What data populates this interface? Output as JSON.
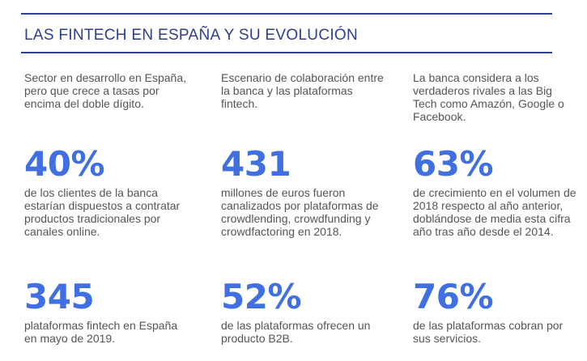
{
  "title": "LAS FINTECH EN ESPAÑA Y SU EVOLUCIÓN",
  "columns": [
    {
      "intro": "Sector en desarrollo en España, pero que crece a tasas por encima del doble dígito.",
      "stats": [
        {
          "value": "40%",
          "desc": "de los clientes de la banca estarían dispuestos a contratar productos tradicionales por canales online."
        },
        {
          "value": "345",
          "desc": "plataformas fintech en España en mayo de 2019."
        }
      ]
    },
    {
      "intro": "Escenario de colaboración entre la banca y las plataformas fintech.",
      "stats": [
        {
          "value": "431",
          "desc": "millones de euros fueron canalizados por plataformas de crowdlending, crowdfunding y crowdfactoring en 2018."
        },
        {
          "value": "52%",
          "desc": "de las plataformas ofrecen un producto B2B."
        }
      ]
    },
    {
      "intro": "La banca considera a los verdaderos rivales a las Big Tech como Amazón, Google o Facebook.",
      "stats": [
        {
          "value": "63%",
          "desc": "de crecimiento en el volumen de 2018 respecto al año anterior, doblándose de media esta cifra año tras año desde el 2014."
        },
        {
          "value": "76%",
          "desc": "de las plataformas cobran por sus servicios."
        }
      ]
    }
  ],
  "colors": {
    "title": "#2d3e8f",
    "rule": "#2d3e8f",
    "stat": "#3f6fe0",
    "text": "#555555"
  }
}
